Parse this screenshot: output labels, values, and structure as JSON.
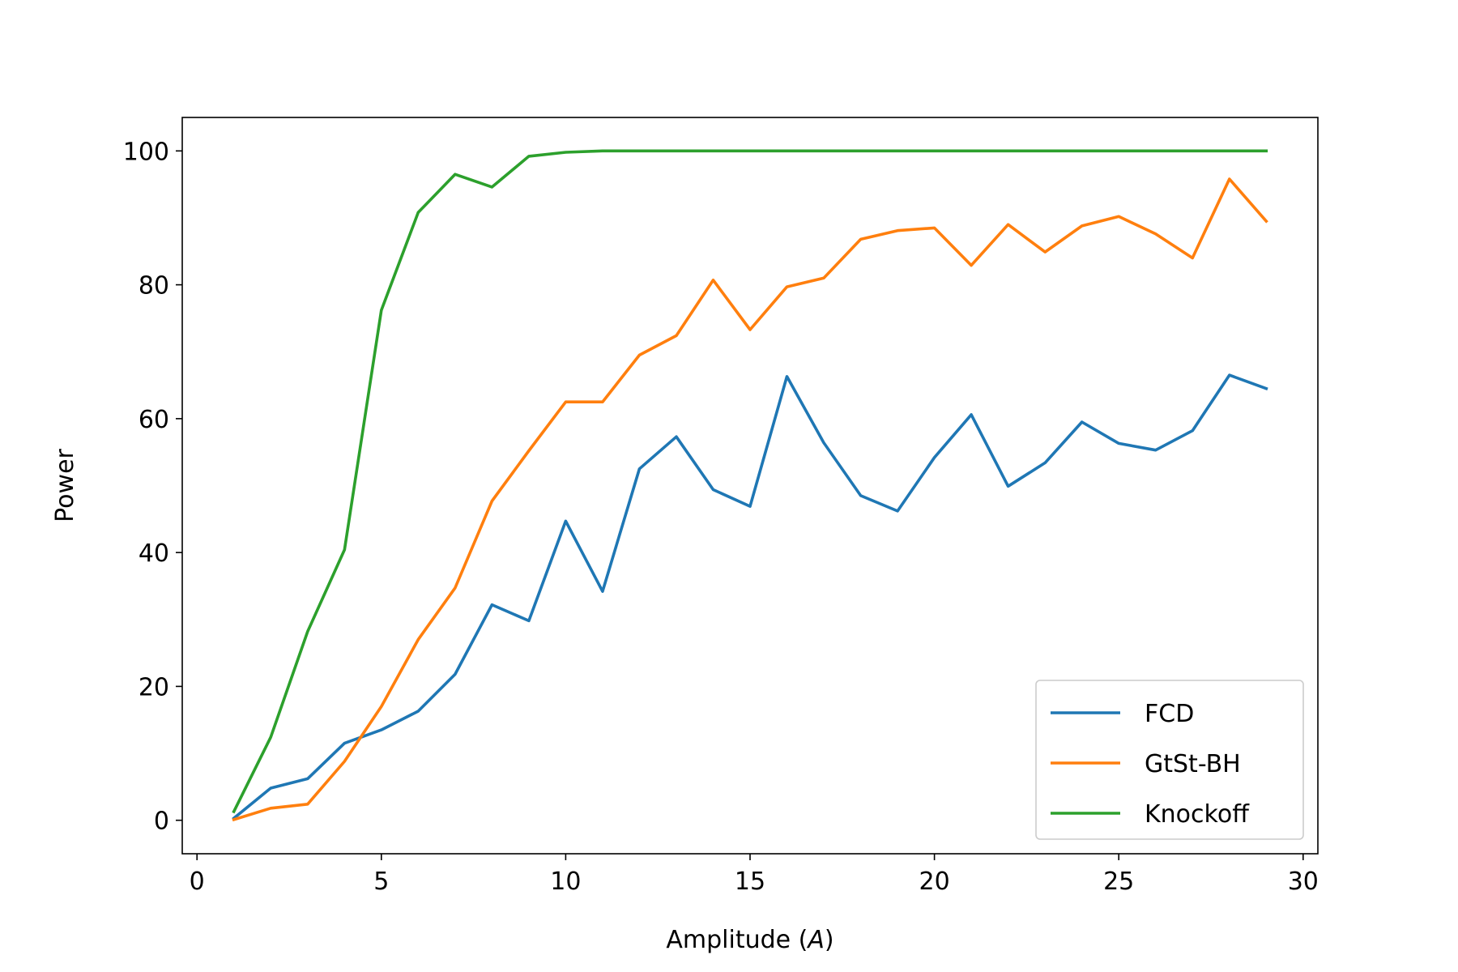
{
  "chart_data": {
    "type": "line",
    "title": "",
    "xlabel_prefix": "Amplitude (",
    "xlabel_symbol": "A",
    "xlabel_suffix": ")",
    "ylabel": "Power",
    "xlim": [
      -0.4,
      30.4
    ],
    "ylim": [
      -5,
      105
    ],
    "xticks": [
      0,
      5,
      10,
      15,
      20,
      25,
      30
    ],
    "yticks": [
      0,
      20,
      40,
      60,
      80,
      100
    ],
    "grid": false,
    "legend_position": "lower-right",
    "x": [
      1,
      2,
      3,
      4,
      5,
      6,
      7,
      8,
      9,
      10,
      11,
      12,
      13,
      14,
      15,
      16,
      17,
      18,
      19,
      20,
      21,
      22,
      23,
      24,
      25,
      26,
      27,
      28,
      29
    ],
    "series": [
      {
        "name": "FCD",
        "color": "#1f77b4",
        "values": [
          0.3,
          4.8,
          6.2,
          11.5,
          13.5,
          16.3,
          21.8,
          32.2,
          29.8,
          44.7,
          34.2,
          52.5,
          57.3,
          49.4,
          46.9,
          66.3,
          56.4,
          48.5,
          46.2,
          54.2,
          60.6,
          49.9,
          53.4,
          59.5,
          56.3,
          55.3,
          58.2,
          66.5,
          64.5
        ]
      },
      {
        "name": "GtSt-BH",
        "color": "#ff7f0e",
        "values": [
          0.1,
          1.8,
          2.4,
          8.8,
          17.0,
          27.0,
          34.7,
          47.7,
          55.2,
          62.5,
          62.5,
          69.5,
          72.4,
          80.7,
          73.3,
          79.7,
          81.0,
          86.8,
          88.1,
          88.5,
          82.9,
          89.0,
          84.9,
          88.8,
          90.2,
          87.6,
          84.0,
          95.8,
          89.5
        ]
      },
      {
        "name": "Knockoff",
        "color": "#2ca02c",
        "values": [
          1.3,
          12.4,
          28.2,
          40.4,
          76.2,
          90.8,
          96.5,
          94.6,
          99.2,
          99.8,
          100,
          100,
          100,
          100,
          100,
          100,
          100,
          100,
          100,
          100,
          100,
          100,
          100,
          100,
          100,
          100,
          100,
          100,
          100
        ]
      }
    ]
  }
}
